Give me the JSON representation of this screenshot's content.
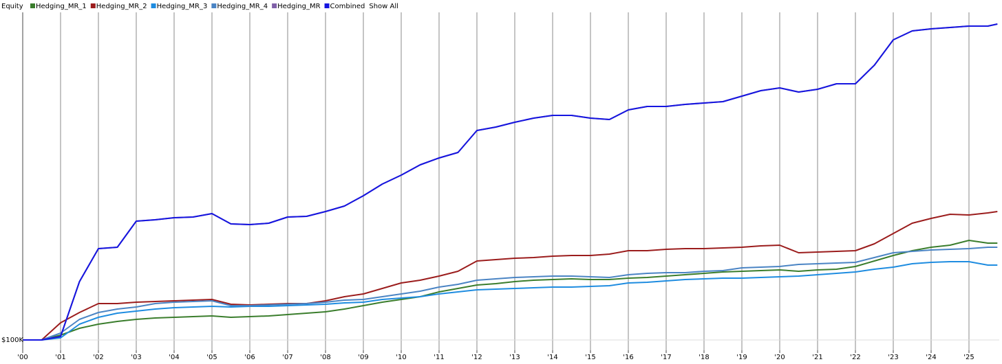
{
  "chart_data": {
    "type": "line",
    "title": "Equity",
    "show_all": "Show All",
    "x": [
      2000,
      2000.5,
      2001,
      2001.5,
      2002,
      2002.5,
      2003,
      2003.5,
      2004,
      2004.5,
      2005,
      2005.5,
      2006,
      2006.5,
      2007,
      2007.5,
      2008,
      2008.5,
      2009,
      2009.5,
      2010,
      2010.5,
      2011,
      2011.5,
      2012,
      2012.5,
      2013,
      2013.5,
      2014,
      2014.5,
      2015,
      2015.5,
      2016,
      2016.5,
      2017,
      2017.5,
      2018,
      2018.5,
      2019,
      2019.5,
      2020,
      2020.5,
      2021,
      2021.5,
      2022,
      2022.5,
      2023,
      2023.5,
      2024,
      2024.5,
      2025,
      2025.5,
      2025.75
    ],
    "xlim": [
      2000,
      2025.8
    ],
    "xticks": [
      {
        "value": 2000,
        "label": "'00"
      },
      {
        "value": 2001,
        "label": "'01"
      },
      {
        "value": 2002,
        "label": "'02"
      },
      {
        "value": 2003,
        "label": "'03"
      },
      {
        "value": 2004,
        "label": "'04"
      },
      {
        "value": 2005,
        "label": "'05"
      },
      {
        "value": 2006,
        "label": "'06"
      },
      {
        "value": 2007,
        "label": "'07"
      },
      {
        "value": 2008,
        "label": "'08"
      },
      {
        "value": 2009,
        "label": "'09"
      },
      {
        "value": 2010,
        "label": "'10"
      },
      {
        "value": 2011,
        "label": "'11"
      },
      {
        "value": 2012,
        "label": "'12"
      },
      {
        "value": 2013,
        "label": "'13"
      },
      {
        "value": 2014,
        "label": "'14"
      },
      {
        "value": 2015,
        "label": "'15"
      },
      {
        "value": 2016,
        "label": "'16"
      },
      {
        "value": 2017,
        "label": "'17"
      },
      {
        "value": 2018,
        "label": "'18"
      },
      {
        "value": 2019,
        "label": "'19"
      },
      {
        "value": 2020,
        "label": "'20"
      },
      {
        "value": 2021,
        "label": "'21"
      },
      {
        "value": 2022,
        "label": "'22"
      },
      {
        "value": 2023,
        "label": "'23"
      },
      {
        "value": 2024,
        "label": "'24"
      },
      {
        "value": 2025,
        "label": "'25"
      }
    ],
    "ylim": [
      40000,
      2008000
    ],
    "yticks": [
      {
        "value": 100000,
        "label": "$100K"
      }
    ],
    "grid": true,
    "series": [
      {
        "name": "Hedging_MR_1",
        "color": "#3a7d2c",
        "values": [
          100000,
          100000,
          128000,
          168000,
          192000,
          208000,
          220000,
          228000,
          232000,
          236000,
          240000,
          232000,
          236000,
          240000,
          248000,
          256000,
          264000,
          280000,
          300000,
          320000,
          336000,
          352000,
          380000,
          400000,
          420000,
          428000,
          440000,
          448000,
          452000,
          456000,
          452000,
          452000,
          460000,
          464000,
          472000,
          480000,
          488000,
          496000,
          500000,
          504000,
          508000,
          500000,
          508000,
          512000,
          528000,
          560000,
          592000,
          620000,
          640000,
          652000,
          680000,
          664000,
          664000
        ]
      },
      {
        "name": "Hedging_MR_2",
        "color": "#9b1c1c",
        "values": [
          100000,
          100000,
          200000,
          260000,
          312000,
          312000,
          320000,
          324000,
          328000,
          332000,
          336000,
          308000,
          304000,
          308000,
          312000,
          312000,
          328000,
          352000,
          368000,
          400000,
          432000,
          448000,
          472000,
          500000,
          560000,
          568000,
          576000,
          580000,
          588000,
          592000,
          592000,
          600000,
          620000,
          620000,
          628000,
          632000,
          632000,
          636000,
          640000,
          648000,
          652000,
          608000,
          612000,
          616000,
          620000,
          660000,
          720000,
          780000,
          808000,
          832000,
          828000,
          840000,
          848000
        ]
      },
      {
        "name": "Hedging_MR_3",
        "color": "#1e8ce0",
        "values": [
          100000,
          100000,
          112000,
          192000,
          232000,
          256000,
          268000,
          280000,
          288000,
          292000,
          296000,
          292000,
          296000,
          296000,
          300000,
          304000,
          308000,
          316000,
          320000,
          336000,
          344000,
          352000,
          368000,
          380000,
          392000,
          396000,
          400000,
          404000,
          408000,
          408000,
          412000,
          416000,
          432000,
          436000,
          444000,
          452000,
          456000,
          460000,
          460000,
          464000,
          468000,
          472000,
          480000,
          488000,
          496000,
          512000,
          524000,
          544000,
          552000,
          556000,
          556000,
          536000,
          536000
        ]
      },
      {
        "name": "Hedging_MR_4",
        "color": "#4a84c4",
        "values": [
          100000,
          100000,
          140000,
          220000,
          260000,
          280000,
          292000,
          312000,
          320000,
          324000,
          328000,
          300000,
          300000,
          304000,
          308000,
          312000,
          320000,
          332000,
          336000,
          352000,
          368000,
          384000,
          408000,
          424000,
          448000,
          456000,
          464000,
          468000,
          472000,
          472000,
          468000,
          464000,
          480000,
          488000,
          492000,
          492000,
          500000,
          504000,
          520000,
          524000,
          528000,
          540000,
          544000,
          548000,
          552000,
          580000,
          608000,
          616000,
          624000,
          628000,
          632000,
          640000,
          640000
        ]
      },
      {
        "name": "Hedging_MR",
        "color": "#8060a8",
        "values": [
          100000,
          100000,
          120000,
          440000,
          632000,
          640000,
          792000,
          800000,
          812000,
          816000,
          836000,
          776000,
          772000,
          780000,
          816000,
          820000,
          848000,
          880000,
          940000,
          1008000,
          1060000,
          1120000,
          1160000,
          1192000,
          1320000,
          1340000,
          1368000,
          1392000,
          1408000,
          1408000,
          1392000,
          1384000,
          1440000,
          1460000,
          1460000,
          1472000,
          1480000,
          1488000,
          1520000,
          1552000,
          1568000,
          1544000,
          1560000,
          1592000,
          1592000,
          1700000,
          1848000,
          1900000,
          1912000,
          1920000,
          1928000,
          1928000,
          1940000
        ]
      },
      {
        "name": "Combined",
        "color": "#1515e0",
        "values": [
          100000,
          100000,
          120000,
          440000,
          632000,
          640000,
          792000,
          800000,
          812000,
          816000,
          836000,
          776000,
          772000,
          780000,
          816000,
          820000,
          848000,
          880000,
          940000,
          1008000,
          1060000,
          1120000,
          1160000,
          1192000,
          1320000,
          1340000,
          1368000,
          1392000,
          1408000,
          1408000,
          1392000,
          1384000,
          1440000,
          1460000,
          1460000,
          1472000,
          1480000,
          1488000,
          1520000,
          1552000,
          1568000,
          1544000,
          1560000,
          1592000,
          1592000,
          1700000,
          1848000,
          1900000,
          1912000,
          1920000,
          1928000,
          1928000,
          1940000
        ]
      }
    ]
  }
}
